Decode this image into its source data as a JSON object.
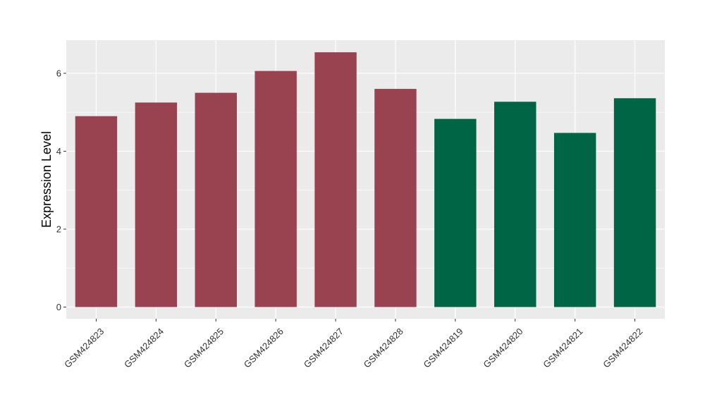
{
  "chart_data": {
    "type": "bar",
    "categories": [
      "GSM424823",
      "GSM424824",
      "GSM424825",
      "GSM424826",
      "GSM424827",
      "GSM424828",
      "GSM424819",
      "GSM424820",
      "GSM424821",
      "GSM424822"
    ],
    "values": [
      4.9,
      5.25,
      5.5,
      6.06,
      6.54,
      5.6,
      4.83,
      5.27,
      4.47,
      5.36
    ],
    "bar_colors": [
      "#9a4350",
      "#9a4350",
      "#9a4350",
      "#9a4350",
      "#9a4350",
      "#9a4350",
      "#006544",
      "#006544",
      "#006544",
      "#006544"
    ],
    "xlabel": "",
    "ylabel": "Expression Level",
    "ylim": [
      -0.3,
      6.85
    ],
    "yticks": [
      0,
      2,
      4,
      6
    ],
    "grid": true,
    "panel_background": "#ebebeb",
    "grid_color": "#ffffff"
  }
}
